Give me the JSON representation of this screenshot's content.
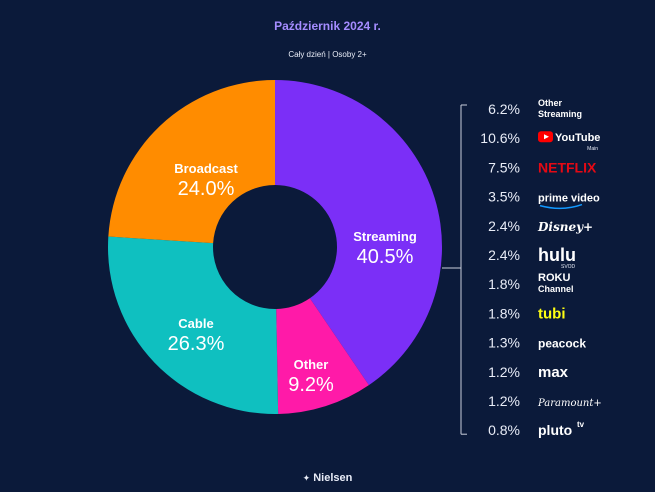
{
  "header": {
    "title": "Październik 2024 r.",
    "subtitle": "Cały dzień | Osoby 2+"
  },
  "footer": {
    "brand": "Nielsen",
    "icon": "nielsen-logo-icon"
  },
  "colors": {
    "background": "#0b1a3a",
    "streaming": "#7b2ff7",
    "other": "#ff1aa8",
    "cable": "#0fc0c0",
    "broadcast": "#ff8c00"
  },
  "chart_data": {
    "type": "pie",
    "variant": "donut",
    "title": "Październik 2024 r.",
    "subtitle": "Cały dzień | Osoby 2+",
    "slices": [
      {
        "label": "Streaming",
        "value": 40.5,
        "display": "40.5%",
        "color": "#7b2ff7"
      },
      {
        "label": "Other",
        "value": 9.2,
        "display": "9.2%",
        "color": "#ff1aa8"
      },
      {
        "label": "Cable",
        "value": 26.3,
        "display": "26.3%",
        "color": "#0fc0c0"
      },
      {
        "label": "Broadcast",
        "value": 24.0,
        "display": "24.0%",
        "color": "#ff8c00"
      }
    ],
    "streaming_breakdown": [
      {
        "name": "Other Streaming",
        "text": "Other\nStreaming",
        "value": 6.2,
        "display": "6.2%",
        "color": "#ffffff"
      },
      {
        "name": "YouTube Main",
        "text": "YouTube",
        "sub": "Main",
        "value": 10.6,
        "display": "10.6%",
        "color": "#ffffff"
      },
      {
        "name": "Netflix",
        "text": "NETFLIX",
        "value": 7.5,
        "display": "7.5%",
        "color": "#e50914"
      },
      {
        "name": "Prime Video",
        "text": "prime video",
        "value": 3.5,
        "display": "3.5%",
        "color": "#ffffff"
      },
      {
        "name": "Disney+",
        "text": "Disney+",
        "value": 2.4,
        "display": "2.4%",
        "color": "#ffffff"
      },
      {
        "name": "Hulu SVOD",
        "text": "hulu",
        "sub": "SVOD",
        "value": 2.4,
        "display": "2.4%",
        "color": "#1ce783"
      },
      {
        "name": "Roku Channel",
        "text": "ROKU\nChannel",
        "value": 1.8,
        "display": "1.8%",
        "color": "#ffffff"
      },
      {
        "name": "Tubi",
        "text": "tubi",
        "value": 1.8,
        "display": "1.8%",
        "color": "#ffff13"
      },
      {
        "name": "Peacock",
        "text": "peacock",
        "value": 1.3,
        "display": "1.3%",
        "color": "#ffffff"
      },
      {
        "name": "Max",
        "text": "max",
        "value": 1.2,
        "display": "1.2%",
        "color": "#ffffff"
      },
      {
        "name": "Paramount+",
        "text": "Paramount+",
        "value": 1.2,
        "display": "1.2%",
        "color": "#ffffff"
      },
      {
        "name": "Pluto TV",
        "text": "pluto",
        "sup": "tv",
        "value": 0.8,
        "display": "0.8%",
        "color": "#fff200"
      }
    ]
  }
}
